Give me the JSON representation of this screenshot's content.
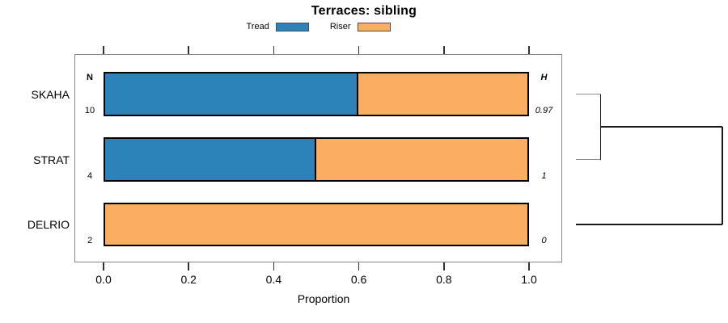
{
  "chart_data": {
    "type": "bar",
    "orientation": "horizontal-stacked",
    "title": "Terraces: sibling",
    "xlabel": "Proportion",
    "xlim": [
      0,
      1.0
    ],
    "xticks": [
      0.0,
      0.2,
      0.4,
      0.6,
      0.8,
      1.0
    ],
    "grid": false,
    "legend_position": "top-center",
    "categories": [
      "SKAHA",
      "STRAT",
      "DELRIO"
    ],
    "series": [
      {
        "name": "Tread",
        "color": "#2B83BA",
        "values": [
          0.6,
          0.5,
          0.0
        ]
      },
      {
        "name": "Riser",
        "color": "#FBAD61",
        "values": [
          0.4,
          0.5,
          1.0
        ]
      }
    ],
    "columns": {
      "n": {
        "header": "N",
        "values": [
          "10",
          "4",
          "2"
        ]
      },
      "h": {
        "header": "H",
        "values": [
          "0.97",
          "1",
          "0"
        ]
      }
    },
    "dendrogram": {
      "order": [
        "SKAHA",
        "STRAT",
        "DELRIO"
      ],
      "first_merge": [
        "SKAHA",
        "STRAT"
      ],
      "second_merge": [
        [
          "SKAHA",
          "STRAT"
        ],
        "DELRIO"
      ],
      "leaf_color": "#8C8C8C",
      "line_color": "#1A1A1A"
    }
  }
}
